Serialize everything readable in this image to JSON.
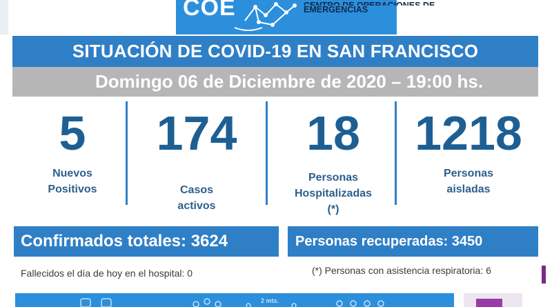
{
  "header": {
    "logo_text": "COE",
    "logo_subtitle_line1": "CENTRO DE OPERACIONES DE",
    "logo_subtitle_line2": "EMERGENCIAS"
  },
  "title": "SITUACIÓN DE COVID-19 EN SAN FRANCISCO",
  "date": "Domingo 06 de Diciembre de 2020 – 19:00 hs.",
  "stats": [
    {
      "value": "5",
      "label_lines": [
        "Nuevos",
        "Positivos"
      ]
    },
    {
      "value": "174",
      "label_lines": [
        "Casos",
        "activos"
      ]
    },
    {
      "value": "18",
      "label_lines": [
        "Personas",
        "Hospitalizadas",
        "(*)"
      ]
    },
    {
      "value": "1218",
      "label_lines": [
        "Personas",
        "aisladas"
      ]
    }
  ],
  "totals": {
    "confirmed": "Confirmados totales: 3624",
    "recovered": "Personas recuperadas: 3450"
  },
  "footnotes": {
    "deceased": "Fallecidos el día de hoy en el hospital: 0",
    "respiratory": "(*) Personas con asistencia respiratoria: 6"
  },
  "bottom_strip": {
    "text": "2 mts."
  },
  "colors": {
    "primary_blue": "#2f7fc6",
    "number_blue": "#1e5f93",
    "date_gray": "#b6b6b6",
    "logo_blue": "#2c8fdc",
    "accent_purple": "#9a3ba8"
  }
}
